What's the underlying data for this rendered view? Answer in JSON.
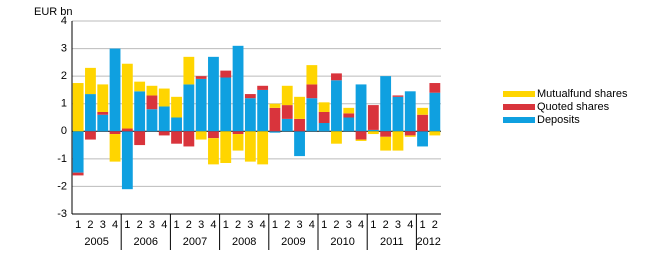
{
  "chart_data": {
    "type": "stacked_bar",
    "y_label": "EUR bn",
    "categories": [
      "1",
      "2",
      "3",
      "4",
      "1",
      "2",
      "3",
      "4",
      "1",
      "2",
      "3",
      "4",
      "1",
      "2",
      "3",
      "4",
      "1",
      "2",
      "3",
      "4",
      "1",
      "2",
      "3",
      "4",
      "1",
      "2",
      "3",
      "4",
      "1",
      "2"
    ],
    "years": [
      "2005",
      "2006",
      "2007",
      "2008",
      "2009",
      "2010",
      "2011",
      "2012"
    ],
    "series": [
      {
        "name": "Deposits",
        "color": "#0fa0e0",
        "values": [
          -1.5,
          1.35,
          0.6,
          3.0,
          -2.1,
          1.45,
          0.8,
          0.9,
          0.5,
          1.7,
          1.9,
          2.7,
          1.95,
          3.1,
          1.2,
          1.5,
          -0.05,
          0.45,
          -0.9,
          1.2,
          0.3,
          1.85,
          0.5,
          1.7,
          0.05,
          2.0,
          1.25,
          1.45,
          -0.55,
          1.4
        ]
      },
      {
        "name": "Quoted shares",
        "color": "#d9343c",
        "values": [
          -0.1,
          -0.3,
          0.1,
          -0.1,
          0.1,
          -0.5,
          0.5,
          -0.15,
          -0.45,
          -0.55,
          0.1,
          -0.25,
          0.25,
          -0.1,
          0.15,
          0.15,
          0.85,
          0.5,
          0.45,
          0.5,
          0.4,
          0.25,
          0.15,
          -0.3,
          0.9,
          -0.2,
          0.05,
          -0.15,
          0.6,
          0.35
        ]
      },
      {
        "name": "Mutualfund shares",
        "color": "#ffd500",
        "values": [
          1.75,
          0.95,
          1.0,
          -1.0,
          2.35,
          0.35,
          0.35,
          0.65,
          0.75,
          1.0,
          -0.3,
          -0.95,
          -1.15,
          -0.6,
          -1.1,
          -1.2,
          0.15,
          0.7,
          0.8,
          0.7,
          0.35,
          -0.45,
          0.2,
          -0.05,
          -0.1,
          -0.5,
          -0.7,
          -0.05,
          0.25,
          -0.15
        ]
      }
    ],
    "ylim": [
      -3,
      4
    ],
    "yticks": [
      -3,
      -2,
      -1,
      0,
      1,
      2,
      3,
      4
    ],
    "grid": true
  }
}
